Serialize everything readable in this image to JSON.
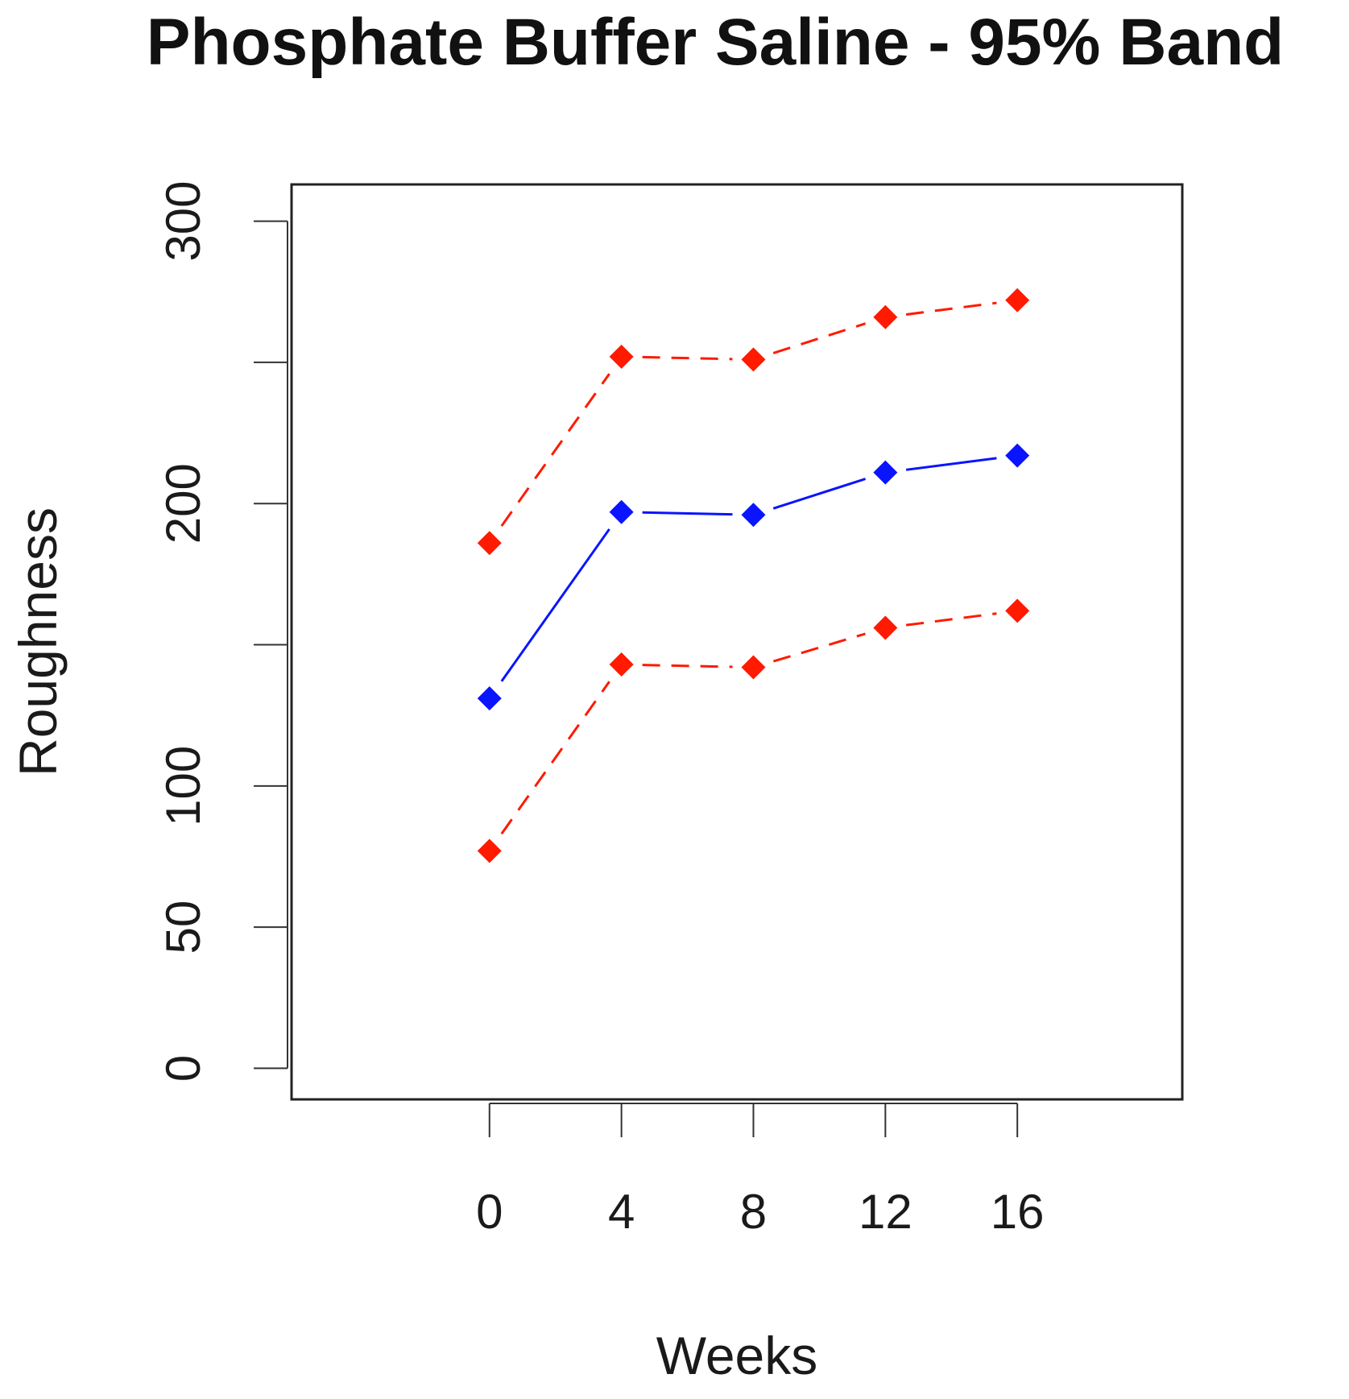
{
  "chart_data": {
    "type": "line",
    "title": "Phosphate Buffer Saline - 95% Band",
    "xlabel": "Weeks",
    "ylabel": "Roughness",
    "x": [
      0,
      4,
      8,
      12,
      16
    ],
    "x_tick_labels": [
      "0",
      "4",
      "8",
      "12",
      "16"
    ],
    "y_ticks": [
      0,
      50,
      100,
      150,
      200,
      250,
      300
    ],
    "y_tick_labels": [
      "0",
      "50",
      "100",
      "",
      "200",
      "",
      "300"
    ],
    "ylim": [
      -11,
      313
    ],
    "xlim": [
      -6,
      21
    ],
    "grid": false,
    "legend": "none",
    "series": [
      {
        "role": "upper",
        "values": [
          186,
          252,
          251,
          266,
          272
        ],
        "color": "#ff1a00",
        "line_style": "dashed",
        "marker": "diamond"
      },
      {
        "role": "center",
        "values": [
          131,
          197,
          196,
          211,
          217
        ],
        "color": "#0a14ff",
        "line_style": "solid",
        "marker": "diamond"
      },
      {
        "role": "lower",
        "values": [
          77,
          143,
          142,
          156,
          162
        ],
        "color": "#ff1a00",
        "line_style": "dashed",
        "marker": "diamond"
      }
    ]
  }
}
